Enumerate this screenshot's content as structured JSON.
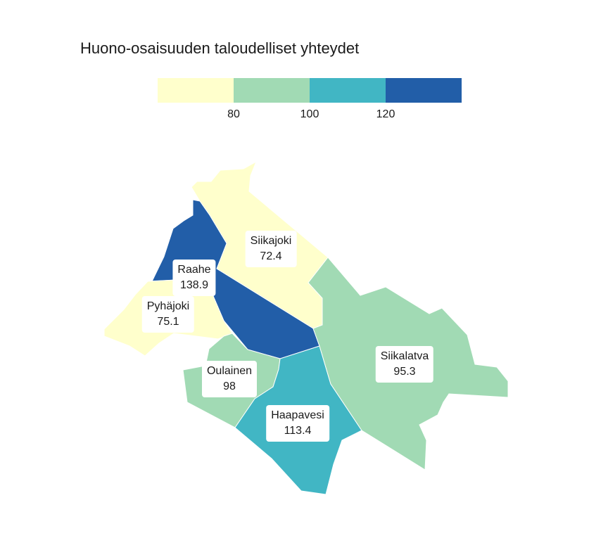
{
  "title": "Huono-osaisuuden taloudelliset yhteydet",
  "legend": {
    "colors": [
      "#ffffcc",
      "#a1dab4",
      "#41b6c4",
      "#225ea8"
    ],
    "ticks": [
      "80",
      "100",
      "120"
    ]
  },
  "regions": [
    {
      "key": "siikajoki",
      "name": "Siikajoki",
      "value": "72.4",
      "color": "#ffffcc"
    },
    {
      "key": "raahe",
      "name": "Raahe",
      "value": "138.9",
      "color": "#225ea8"
    },
    {
      "key": "pyhajoki",
      "name": "Pyhäjoki",
      "value": "75.1",
      "color": "#ffffcc"
    },
    {
      "key": "oulainen",
      "name": "Oulainen",
      "value": "98",
      "color": "#a1dab4"
    },
    {
      "key": "haapavesi",
      "name": "Haapavesi",
      "value": "113.4",
      "color": "#41b6c4"
    },
    {
      "key": "siikalatva",
      "name": "Siikalatva",
      "value": "95.3",
      "color": "#a1dab4"
    }
  ]
}
